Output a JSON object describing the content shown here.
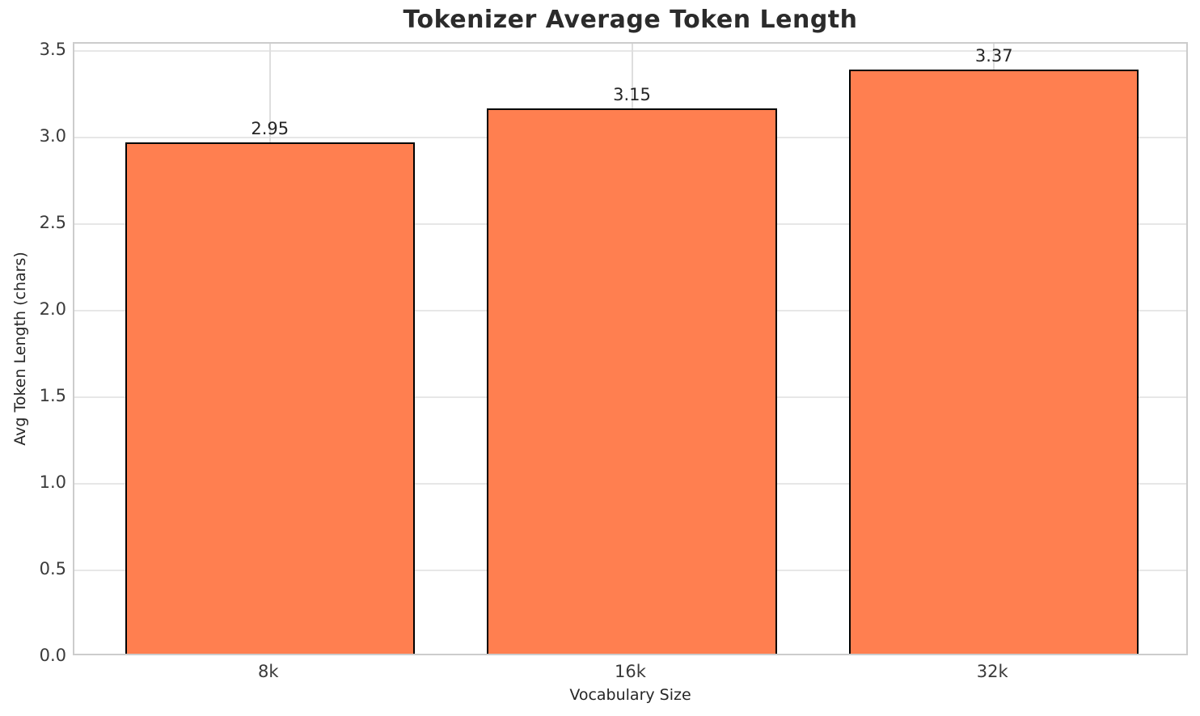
{
  "figure": {
    "background": "#ffffff"
  },
  "chart_data": {
    "type": "bar",
    "title": "Tokenizer Average Token Length",
    "xlabel": "Vocabulary Size",
    "ylabel": "Avg Token Length (chars)",
    "categories": [
      "8k",
      "16k",
      "32k"
    ],
    "values": [
      2.95,
      3.15,
      3.37
    ],
    "value_labels": [
      "2.95",
      "3.15",
      "3.37"
    ],
    "yticks": [
      0.0,
      0.5,
      1.0,
      1.5,
      2.0,
      2.5,
      3.0,
      3.5
    ],
    "ytick_labels": [
      "0.0",
      "0.5",
      "1.0",
      "1.5",
      "2.0",
      "2.5",
      "3.0",
      "3.5"
    ],
    "ylim": [
      0,
      3.54
    ],
    "xlim_units": [
      -0.54,
      2.54
    ],
    "bar_width_units": 0.8,
    "grid": true,
    "legend_position": "none",
    "colors": {
      "bar_fill": "#FF7F50",
      "bar_edge": "#000000",
      "gridline_h": "#e7e7e7",
      "gridline_v": "#dedede",
      "spine": "#cccccc",
      "title_text": "#2b2b2b",
      "tick_text": "#3a3a3a",
      "label_text": "#262626"
    }
  }
}
